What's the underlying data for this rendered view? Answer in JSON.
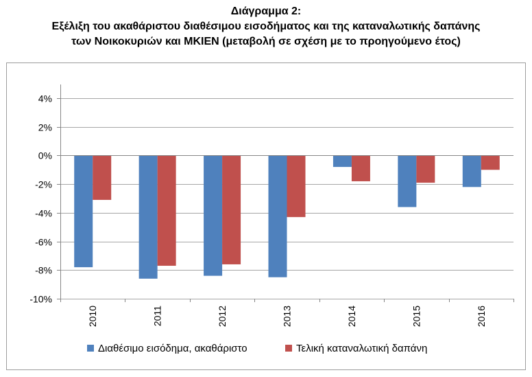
{
  "title": {
    "line1": "Διάγραμμα 2:",
    "line2": "Εξέλιξη του ακαθάριστου διαθέσιμου εισοδήματος και της καταναλωτικής δαπάνης",
    "line3": "των Νοικοκυριών και ΜΚΙΕΝ (μεταβολή σε σχέση με το προηγούμενο έτος)"
  },
  "colors": {
    "series1": "#4f81bd",
    "series2": "#c0504d",
    "grid": "#a6a6a6",
    "axis": "#868686"
  },
  "chart_data": {
    "type": "bar",
    "title": "Εξέλιξη του ακαθάριστου διαθέσιμου εισοδήματος και της καταναλωτικής δαπάνης των Νοικοκυριών και ΜΚΙΕΝ (μεταβολή σε σχέση με το προηγούμενο έτος)",
    "categories": [
      "2010",
      "2011",
      "2012",
      "2013",
      "2014",
      "2015",
      "2016"
    ],
    "series": [
      {
        "name": "Διαθέσιμο εισόδημα, ακαθάριστο",
        "values": [
          -7.8,
          -8.6,
          -8.4,
          -8.5,
          -0.8,
          -3.6,
          -2.2
        ]
      },
      {
        "name": "Τελική καταναλωτική δαπάνη",
        "values": [
          -3.1,
          -7.7,
          -7.6,
          -4.3,
          -1.8,
          -1.9,
          -1.0
        ]
      }
    ],
    "ylim": [
      -10,
      4
    ],
    "yticks": [
      4,
      2,
      0,
      -2,
      -4,
      -6,
      -8,
      -10
    ],
    "ytick_labels": [
      "4%",
      "2%",
      "0%",
      "-2%",
      "-4%",
      "-6%",
      "-8%",
      "-10%"
    ],
    "grid": true,
    "legend": "bottom",
    "xlabel": "",
    "ylabel": ""
  }
}
